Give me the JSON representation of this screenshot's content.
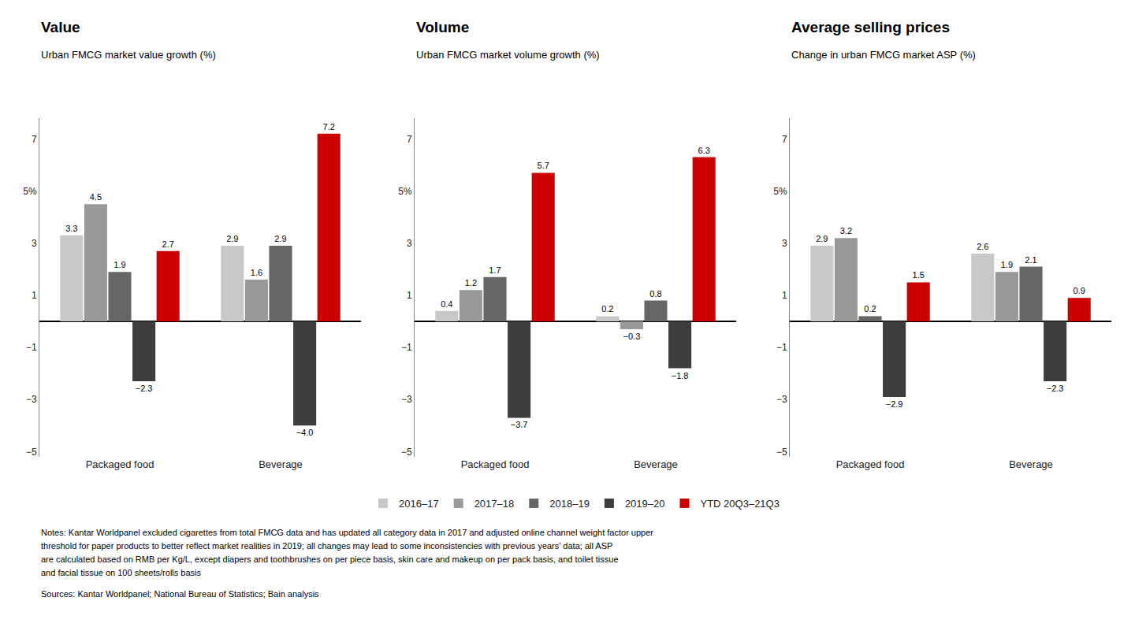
{
  "chart_data": [
    {
      "type": "bar",
      "title": "Value",
      "subtitle": "Urban FMCG market value growth (%)",
      "categories": [
        "Packaged food",
        "Beverage"
      ],
      "series": [
        {
          "name": "2016–17",
          "color": "#c8c8c8",
          "values": [
            3.3,
            2.9
          ]
        },
        {
          "name": "2017–18",
          "color": "#999999",
          "values": [
            4.5,
            1.6
          ]
        },
        {
          "name": "2018–19",
          "color": "#666666",
          "values": [
            1.9,
            2.9
          ]
        },
        {
          "name": "2019–20",
          "color": "#3d3d3d",
          "values": [
            -2.3,
            -4.0
          ],
          "value_labels": [
            "−2.3",
            "−4.0"
          ]
        },
        {
          "name": "YTD 20Q3–21Q3",
          "color": "#cc0000",
          "values": [
            2.7,
            7.2
          ]
        }
      ],
      "ylim": [
        -5.2,
        7.8
      ],
      "yticks": [
        {
          "value": -5,
          "label": "−5"
        },
        {
          "value": -3,
          "label": "−3"
        },
        {
          "value": -1,
          "label": "−1"
        },
        1,
        3,
        {
          "value": 5,
          "label": "5%"
        },
        7
      ],
      "grid": false,
      "data_labels": true,
      "legend": "bottom",
      "annotations": [
        "Notes: Kantar Worldpanel excluded cigarettes from total FMCG data and has updated all category data in 2017 and adjusted online channel weight factor upper",
        "threshold for paper products to better reflect market realities in 2019; all changes may lead to some inconsistencies with previous years’ data; all ASP",
        "are calculated based on RMB per Kg/L, except diapers and toothbrushes on per piece basis, skin care and makeup on per pack basis, and toilet tissue",
        "and facial tissue on 100 sheets/rolls basis",
        "Sources: Kantar Worldpanel; National Bureau of Statistics; Bain analysis"
      ]
    },
    {
      "type": "bar",
      "title": "Volume",
      "subtitle": "Urban FMCG market volume growth (%)",
      "categories": [
        "Packaged food",
        "Beverage"
      ],
      "series": [
        {
          "name": "2016–17",
          "color": "#c8c8c8",
          "values": [
            0.4,
            0.2
          ]
        },
        {
          "name": "2017–18",
          "color": "#999999",
          "values": [
            1.2,
            -0.3
          ],
          "value_labels": [
            "1.2",
            "−0.3"
          ]
        },
        {
          "name": "2018–19",
          "color": "#666666",
          "values": [
            1.7,
            0.8
          ]
        },
        {
          "name": "2019–20",
          "color": "#3d3d3d",
          "values": [
            -3.7,
            -1.8
          ],
          "value_labels": [
            "−3.7",
            "−1.8"
          ]
        },
        {
          "name": "YTD 20Q3–21Q3",
          "color": "#cc0000",
          "values": [
            5.7,
            6.3
          ]
        }
      ],
      "ylim": [
        -5.2,
        7.8
      ],
      "yticks": [
        {
          "value": -5,
          "label": "−5"
        },
        {
          "value": -3,
          "label": "−3"
        },
        {
          "value": -1,
          "label": "−1"
        },
        1,
        3,
        {
          "value": 5,
          "label": "5%"
        },
        7
      ],
      "grid": false,
      "data_labels": true
    },
    {
      "type": "bar",
      "title": "Average selling prices",
      "subtitle": "Change in urban FMCG market ASP (%)",
      "categories": [
        "Packaged food",
        "Beverage"
      ],
      "series": [
        {
          "name": "2016–17",
          "color": "#c8c8c8",
          "values": [
            2.9,
            2.6
          ]
        },
        {
          "name": "2017–18",
          "color": "#999999",
          "values": [
            3.2,
            1.9
          ]
        },
        {
          "name": "2018–19",
          "color": "#666666",
          "values": [
            0.2,
            2.1
          ]
        },
        {
          "name": "2019–20",
          "color": "#3d3d3d",
          "values": [
            -2.9,
            -2.3
          ],
          "value_labels": [
            "−2.9",
            "−2.3"
          ]
        },
        {
          "name": "YTD 20Q3–21Q3",
          "color": "#cc0000",
          "values": [
            1.5,
            0.9
          ]
        }
      ],
      "ylim": [
        -5.2,
        7.8
      ],
      "yticks": [
        {
          "value": -5,
          "label": "−5"
        },
        {
          "value": -3,
          "label": "−3"
        },
        {
          "value": -1,
          "label": "−1"
        },
        1,
        3,
        {
          "value": 5,
          "label": "5%"
        },
        7
      ],
      "grid": false,
      "data_labels": true
    }
  ]
}
